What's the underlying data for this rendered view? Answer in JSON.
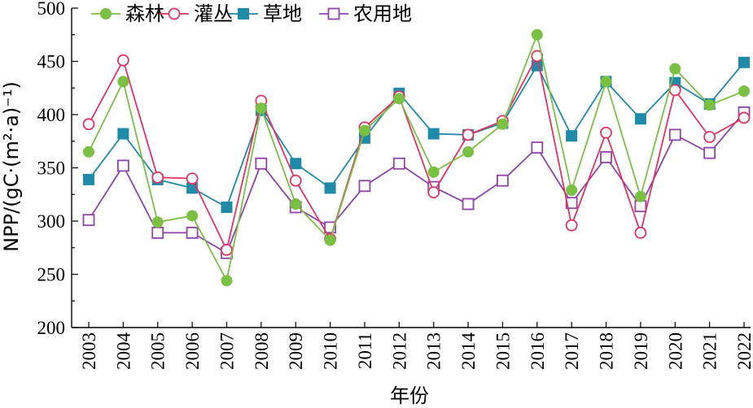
{
  "chart_data": {
    "type": "line",
    "title": "",
    "xlabel": "年份",
    "ylabel": "NPP/(gC·(m²·a)⁻¹)",
    "ylim": [
      200,
      500
    ],
    "yticks": [
      200,
      250,
      300,
      350,
      400,
      450,
      500
    ],
    "x": [
      "2003",
      "2004",
      "2005",
      "2006",
      "2007",
      "2008",
      "2009",
      "2010",
      "2011",
      "2012",
      "2013",
      "2014",
      "2015",
      "2016",
      "2017",
      "2018",
      "2019",
      "2020",
      "2021",
      "2022"
    ],
    "legend_position": "top",
    "grid": false,
    "series": [
      {
        "name": "森林",
        "color": "#7ac143",
        "marker": "circle-filled",
        "values": [
          365,
          431,
          299,
          305,
          244,
          406,
          316,
          282,
          385,
          415,
          346,
          365,
          391,
          475,
          329,
          431,
          323,
          443,
          409,
          422
        ]
      },
      {
        "name": "灌丛",
        "color": "#e3335f",
        "marker": "circle-open",
        "values": [
          391,
          451,
          341,
          340,
          273,
          413,
          338,
          283,
          388,
          417,
          327,
          381,
          394,
          455,
          296,
          383,
          289,
          423,
          379,
          397
        ]
      },
      {
        "name": "草地",
        "color": "#1f8ba8",
        "marker": "square-filled",
        "values": [
          339,
          382,
          339,
          331,
          313,
          404,
          354,
          331,
          378,
          420,
          382,
          381,
          392,
          446,
          380,
          431,
          396,
          430,
          410,
          449
        ]
      },
      {
        "name": "农用地",
        "color": "#8e44a8",
        "marker": "square-open",
        "values": [
          301,
          352,
          289,
          289,
          270,
          354,
          313,
          294,
          333,
          354,
          332,
          316,
          338,
          369,
          317,
          360,
          314,
          381,
          364,
          402
        ]
      }
    ]
  }
}
